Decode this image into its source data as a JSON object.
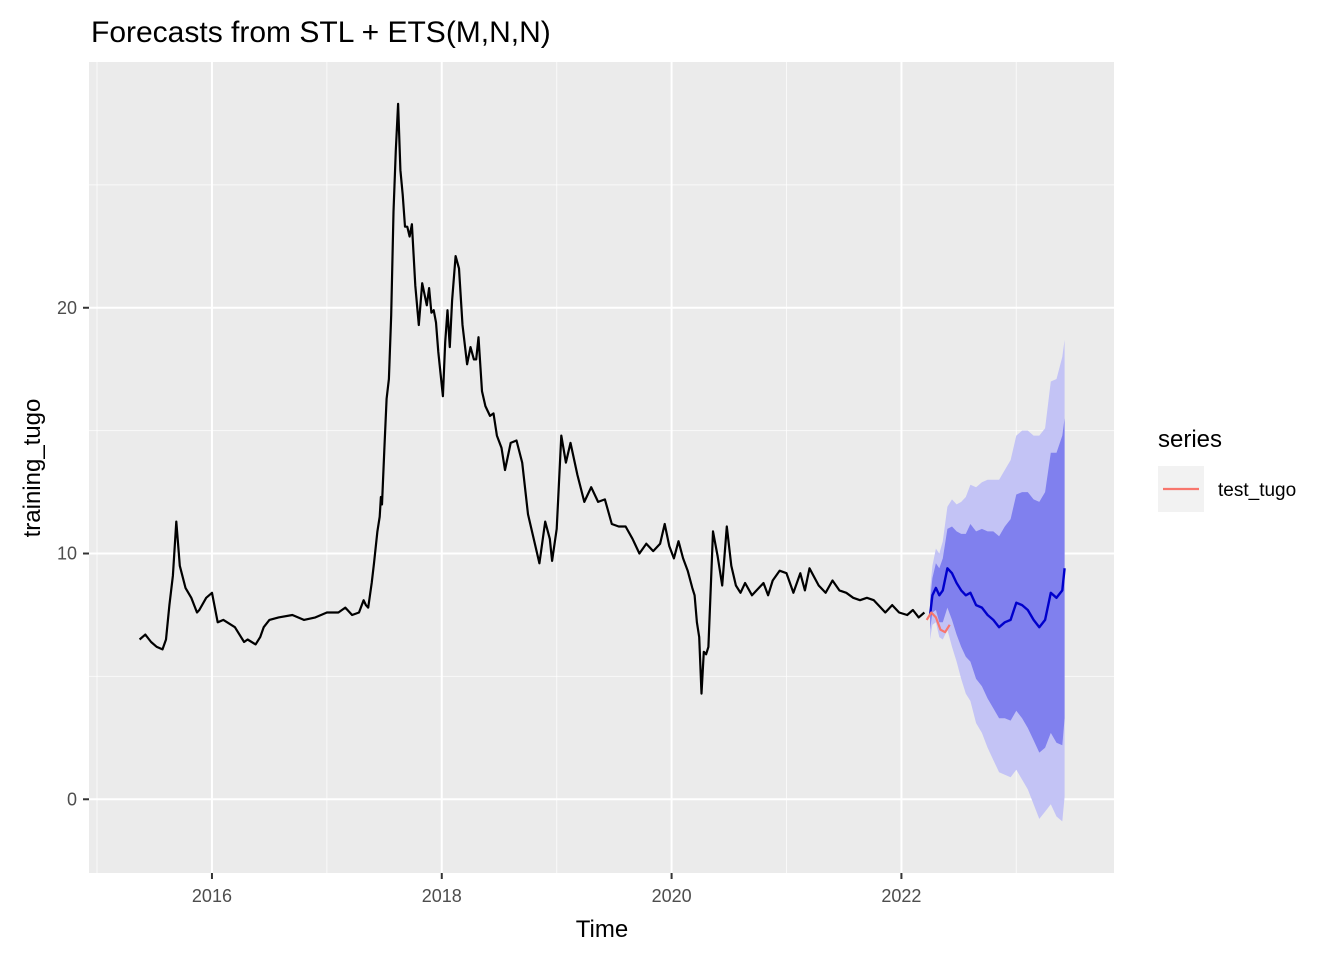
{
  "chart_data": {
    "type": "line",
    "title": "Forecasts from STL +  ETS(M,N,N)",
    "xlabel": "Time",
    "ylabel": "training_tugo",
    "xlim": [
      2014.93,
      2023.85
    ],
    "ylim": [
      -3,
      30
    ],
    "x_ticks": [
      2016,
      2018,
      2020,
      2022
    ],
    "x_tick_labels": [
      "2016",
      "2018",
      "2020",
      "2022"
    ],
    "y_ticks": [
      0,
      10,
      20
    ],
    "y_tick_labels": [
      "0",
      "10",
      "20"
    ],
    "grid": true,
    "legend": {
      "title": "series",
      "placement": "right",
      "entries": [
        {
          "label": "test_tugo",
          "color": "#F8766D"
        }
      ]
    },
    "colors": {
      "history": "#000000",
      "forecast": "#0000CC",
      "pi80": "#8080EE",
      "pi95": "#C3C3F5",
      "test": "#F8766D",
      "panel": "#EBEBEB",
      "grid": "#FFFFFF"
    },
    "series": [
      {
        "kind": "history",
        "x": [
          2015.37,
          2015.42,
          2015.47,
          2015.52,
          2015.57,
          2015.6,
          2015.63,
          2015.66,
          2015.69,
          2015.72,
          2015.77,
          2015.82,
          2015.87,
          2015.89,
          2015.95,
          2016.0,
          2016.05,
          2016.1,
          2016.2,
          2016.28,
          2016.31,
          2016.38,
          2016.42,
          2016.45,
          2016.5,
          2016.58,
          2016.7,
          2016.8,
          2016.9,
          2017.0,
          2017.1,
          2017.16,
          2017.22,
          2017.28,
          2017.32,
          2017.34,
          2017.36,
          2017.39,
          2017.41,
          2017.44,
          2017.46,
          2017.47,
          2017.48,
          2017.5,
          2017.52,
          2017.54,
          2017.56,
          2017.58,
          2017.6,
          2017.62,
          2017.64,
          2017.66,
          2017.68,
          2017.7,
          2017.72,
          2017.74,
          2017.77,
          2017.8,
          2017.83,
          2017.87,
          2017.89,
          2017.91,
          2017.93,
          2017.95,
          2017.97,
          2017.99,
          2018.01,
          2018.03,
          2018.05,
          2018.07,
          2018.09,
          2018.12,
          2018.15,
          2018.18,
          2018.22,
          2018.25,
          2018.28,
          2018.3,
          2018.32,
          2018.35,
          2018.38,
          2018.42,
          2018.45,
          2018.48,
          2018.52,
          2018.55,
          2018.6,
          2018.65,
          2018.7,
          2018.75,
          2018.8,
          2018.85,
          2018.9,
          2018.94,
          2018.96,
          2019.0,
          2019.04,
          2019.08,
          2019.12,
          2019.18,
          2019.24,
          2019.3,
          2019.36,
          2019.42,
          2019.48,
          2019.54,
          2019.6,
          2019.66,
          2019.72,
          2019.78,
          2019.84,
          2019.9,
          2019.94,
          2019.98,
          2020.02,
          2020.06,
          2020.1,
          2020.14,
          2020.18,
          2020.2,
          2020.22,
          2020.24,
          2020.26,
          2020.28,
          2020.3,
          2020.32,
          2020.36,
          2020.4,
          2020.44,
          2020.48,
          2020.52,
          2020.56,
          2020.6,
          2020.64,
          2020.7,
          2020.76,
          2020.8,
          2020.84,
          2020.88,
          2020.94,
          2021.0,
          2021.06,
          2021.12,
          2021.16,
          2021.2,
          2021.28,
          2021.34,
          2021.4,
          2021.46,
          2021.52,
          2021.58,
          2021.64,
          2021.7,
          2021.76,
          2021.8,
          2021.86,
          2021.92,
          2021.98,
          2022.05,
          2022.1,
          2022.15,
          2022.2,
          2022.26
        ],
        "y": [
          6.5,
          6.7,
          6.4,
          6.2,
          6.1,
          6.5,
          7.9,
          9.1,
          11.3,
          9.5,
          8.6,
          8.2,
          7.6,
          7.7,
          8.2,
          8.4,
          7.2,
          7.3,
          7.0,
          6.4,
          6.5,
          6.3,
          6.6,
          7.0,
          7.3,
          7.4,
          7.5,
          7.3,
          7.4,
          7.6,
          7.6,
          7.8,
          7.5,
          7.6,
          8.1,
          7.9,
          7.8,
          8.8,
          9.6,
          10.9,
          11.5,
          12.3,
          12.0,
          14.2,
          16.3,
          17.1,
          19.7,
          23.9,
          26.4,
          28.3,
          25.6,
          24.6,
          23.3,
          23.3,
          22.9,
          23.4,
          20.9,
          19.3,
          21.0,
          20.1,
          20.8,
          19.8,
          19.9,
          19.4,
          18.2,
          17.3,
          16.4,
          18.6,
          19.9,
          18.4,
          20.3,
          22.1,
          21.6,
          19.3,
          17.7,
          18.4,
          17.9,
          17.9,
          18.8,
          16.6,
          16.0,
          15.6,
          15.7,
          14.8,
          14.3,
          13.4,
          14.5,
          14.6,
          13.7,
          11.6,
          10.6,
          9.6,
          11.3,
          10.6,
          9.7,
          11.0,
          14.8,
          13.7,
          14.5,
          13.2,
          12.1,
          12.7,
          12.1,
          12.2,
          11.2,
          11.1,
          11.1,
          10.6,
          10.0,
          10.4,
          10.1,
          10.4,
          11.2,
          10.3,
          9.8,
          10.5,
          9.8,
          9.3,
          8.6,
          8.3,
          7.2,
          6.6,
          4.3,
          6.0,
          5.9,
          6.2,
          10.9,
          9.9,
          8.7,
          11.1,
          9.5,
          8.7,
          8.4,
          8.8,
          8.3,
          8.6,
          8.8,
          8.3,
          8.9,
          9.3,
          9.2,
          8.4,
          9.2,
          8.5,
          9.4,
          8.7,
          8.4,
          8.9,
          8.5,
          8.4,
          8.2,
          8.1,
          8.2,
          8.1,
          7.9,
          7.6,
          7.9,
          7.6,
          7.5,
          7.7,
          7.4,
          7.6
        ]
      },
      {
        "kind": "test",
        "name": "test_tugo",
        "x": [
          2022.22,
          2022.26,
          2022.3,
          2022.34,
          2022.38,
          2022.42
        ],
        "y": [
          7.3,
          7.6,
          7.4,
          6.9,
          6.8,
          7.1
        ]
      },
      {
        "kind": "forecast",
        "x": [
          2022.25,
          2022.27,
          2022.3,
          2022.33,
          2022.36,
          2022.4,
          2022.44,
          2022.48,
          2022.52,
          2022.56,
          2022.6,
          2022.65,
          2022.7,
          2022.75,
          2022.8,
          2022.85,
          2022.9,
          2022.95,
          2023.0,
          2023.05,
          2023.1,
          2023.15,
          2023.2,
          2023.25,
          2023.3,
          2023.35,
          2023.4,
          2023.42
        ],
        "y": [
          7.5,
          8.3,
          8.6,
          8.3,
          8.5,
          9.4,
          9.2,
          8.8,
          8.5,
          8.3,
          8.4,
          7.9,
          7.8,
          7.5,
          7.3,
          7.0,
          7.2,
          7.3,
          8.0,
          7.9,
          7.7,
          7.3,
          7.0,
          7.3,
          8.4,
          8.2,
          8.5,
          9.4
        ],
        "lo80": [
          6.9,
          7.6,
          7.7,
          7.2,
          7.2,
          7.8,
          7.3,
          6.7,
          6.2,
          5.8,
          5.6,
          4.9,
          4.6,
          4.1,
          3.7,
          3.3,
          3.3,
          3.2,
          3.6,
          3.3,
          2.9,
          2.4,
          1.9,
          2.1,
          2.7,
          2.3,
          2.2,
          3.3
        ],
        "hi80": [
          8.1,
          9.0,
          9.6,
          9.4,
          9.8,
          11.0,
          11.1,
          10.9,
          10.8,
          10.8,
          11.2,
          10.9,
          11.0,
          10.9,
          10.9,
          10.7,
          11.1,
          11.4,
          12.4,
          12.5,
          12.5,
          12.2,
          12.1,
          12.5,
          14.1,
          14.1,
          14.8,
          15.5
        ],
        "lo95": [
          6.5,
          7.1,
          7.2,
          6.6,
          6.5,
          6.9,
          6.2,
          5.6,
          4.9,
          4.3,
          4.0,
          3.1,
          2.7,
          2.1,
          1.6,
          1.1,
          1.0,
          0.9,
          1.2,
          0.8,
          0.4,
          -0.2,
          -0.8,
          -0.5,
          -0.2,
          -0.7,
          -0.9,
          0.1
        ],
        "hi95": [
          8.5,
          9.5,
          10.2,
          10.0,
          10.5,
          11.9,
          12.2,
          12.0,
          12.1,
          12.3,
          12.8,
          12.7,
          12.9,
          13.0,
          13.0,
          13.0,
          13.4,
          13.8,
          14.8,
          15.0,
          15.0,
          14.8,
          14.8,
          15.1,
          17.0,
          17.1,
          18.0,
          18.7
        ]
      }
    ]
  }
}
